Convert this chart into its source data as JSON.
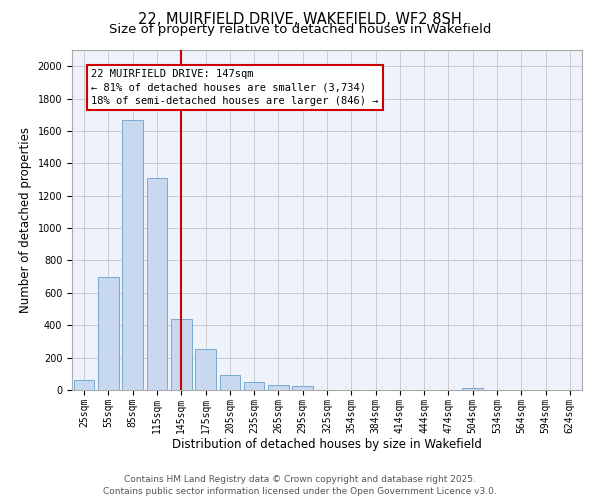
{
  "title_line1": "22, MUIRFIELD DRIVE, WAKEFIELD, WF2 8SH",
  "title_line2": "Size of property relative to detached houses in Wakefield",
  "xlabel": "Distribution of detached houses by size in Wakefield",
  "ylabel": "Number of detached properties",
  "categories": [
    "25sqm",
    "55sqm",
    "85sqm",
    "115sqm",
    "145sqm",
    "175sqm",
    "205sqm",
    "235sqm",
    "265sqm",
    "295sqm",
    "325sqm",
    "354sqm",
    "384sqm",
    "414sqm",
    "444sqm",
    "474sqm",
    "504sqm",
    "534sqm",
    "564sqm",
    "594sqm",
    "624sqm"
  ],
  "values": [
    60,
    700,
    1670,
    1310,
    440,
    255,
    90,
    50,
    30,
    22,
    0,
    0,
    0,
    0,
    0,
    0,
    15,
    0,
    0,
    0,
    0
  ],
  "bar_color": "#c8d8ee",
  "bar_edge_color": "#7aaad0",
  "vline_x_index": 4,
  "vline_color": "#cc0000",
  "annotation_text": "22 MUIRFIELD DRIVE: 147sqm\n← 81% of detached houses are smaller (3,734)\n18% of semi-detached houses are larger (846) →",
  "annotation_box_color": "#cc0000",
  "ylim": [
    0,
    2100
  ],
  "yticks": [
    0,
    200,
    400,
    600,
    800,
    1000,
    1200,
    1400,
    1600,
    1800,
    2000
  ],
  "grid_color": "#cccccc",
  "bg_color": "#eef2fa",
  "footer_line1": "Contains HM Land Registry data © Crown copyright and database right 2025.",
  "footer_line2": "Contains public sector information licensed under the Open Government Licence v3.0.",
  "title_fontsize": 10.5,
  "subtitle_fontsize": 9.5,
  "axis_label_fontsize": 8.5,
  "tick_fontsize": 7,
  "annotation_fontsize": 7.5,
  "footer_fontsize": 6.5
}
